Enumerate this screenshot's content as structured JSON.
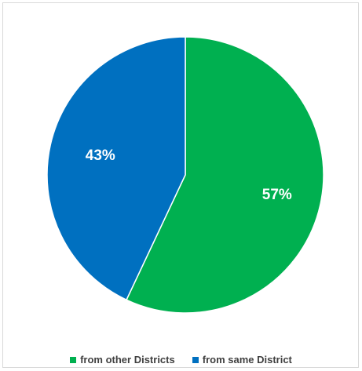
{
  "chart_data": {
    "type": "pie",
    "title": "",
    "slices": [
      {
        "name": "from other Districts",
        "value": 57,
        "label": "57%",
        "color": "#00b050"
      },
      {
        "name": "from same District",
        "value": 43,
        "label": "43%",
        "color": "#0070c0"
      }
    ],
    "start_angle_deg": 0,
    "direction": "clockwise",
    "legend_position": "bottom"
  }
}
